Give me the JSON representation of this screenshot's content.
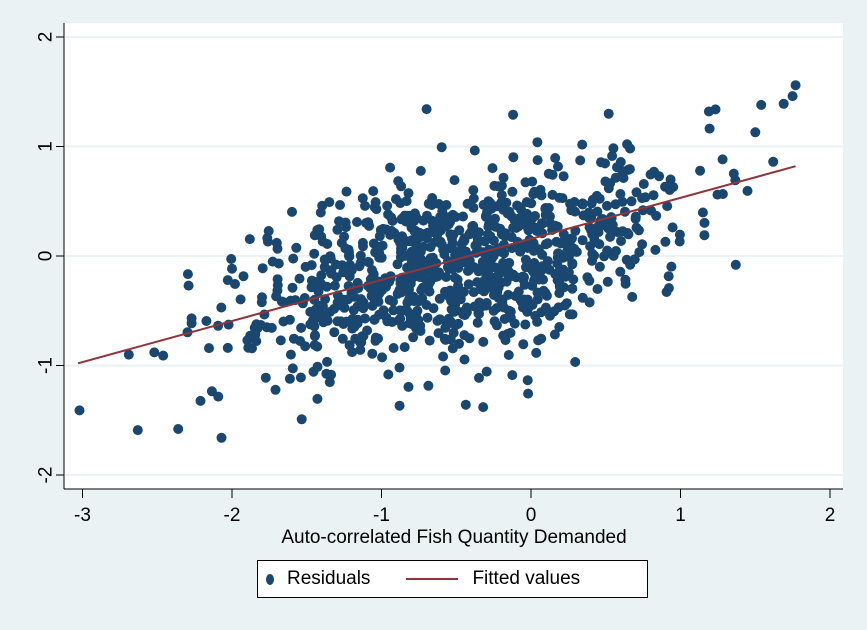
{
  "chart_data": {
    "type": "scatter",
    "title": "",
    "xlabel": "Auto-correlated Fish Quantity Demanded",
    "ylabel": "",
    "xlim": [
      -3.1,
      2.1
    ],
    "ylim": [
      -2.1,
      2.1
    ],
    "x_ticks": [
      -3,
      -2,
      -1,
      0,
      1,
      2
    ],
    "y_ticks": [
      -2,
      -1,
      0,
      1,
      2
    ],
    "x_tick_labels": [
      "-3",
      "-2",
      "-1",
      "0",
      "1",
      "2"
    ],
    "y_tick_labels": [
      "-2",
      "-1",
      "0",
      "1",
      "2"
    ],
    "grid": "horizontal",
    "legend_position": "bottom",
    "series": [
      {
        "name": "Residuals",
        "kind": "scatter",
        "color": "#1a476f",
        "n_points_approx": 1000,
        "notable_points": [
          {
            "x": -3.02,
            "y": -1.41
          },
          {
            "x": -2.63,
            "y": -1.59
          },
          {
            "x": -2.36,
            "y": -1.58
          },
          {
            "x": -2.07,
            "y": -1.66
          },
          {
            "x": -2.69,
            "y": -0.9
          },
          {
            "x": -2.52,
            "y": -0.88
          },
          {
            "x": -2.46,
            "y": -0.91
          },
          {
            "x": -2.29,
            "y": -0.27
          },
          {
            "x": -0.32,
            "y": -1.38
          },
          {
            "x": 1.37,
            "y": -0.08
          },
          {
            "x": 0.52,
            "y": 1.3
          },
          {
            "x": 1.19,
            "y": 1.32
          },
          {
            "x": -0.12,
            "y": 1.29
          },
          {
            "x": 1.77,
            "y": 1.56
          },
          {
            "x": 1.75,
            "y": 1.46
          },
          {
            "x": 1.69,
            "y": 1.39
          },
          {
            "x": 1.54,
            "y": 1.38
          },
          {
            "x": 1.5,
            "y": 1.13
          },
          {
            "x": 1.62,
            "y": 0.86
          },
          {
            "x": 1.16,
            "y": 0.19
          }
        ]
      },
      {
        "name": "Fitted values",
        "kind": "line",
        "color": "#90353b",
        "x": [
          -3.03,
          1.77
        ],
        "y": [
          -0.98,
          0.82
        ]
      }
    ],
    "colors": {
      "background": "#eaf2f3",
      "plot_background": "#ffffff",
      "grid": "#eaf2f3",
      "marker": "#1a476f",
      "fit_line": "#90353b"
    }
  },
  "legend": {
    "items": [
      {
        "label": "Residuals",
        "symbol": "dot"
      },
      {
        "label": "Fitted values",
        "symbol": "line"
      }
    ]
  }
}
